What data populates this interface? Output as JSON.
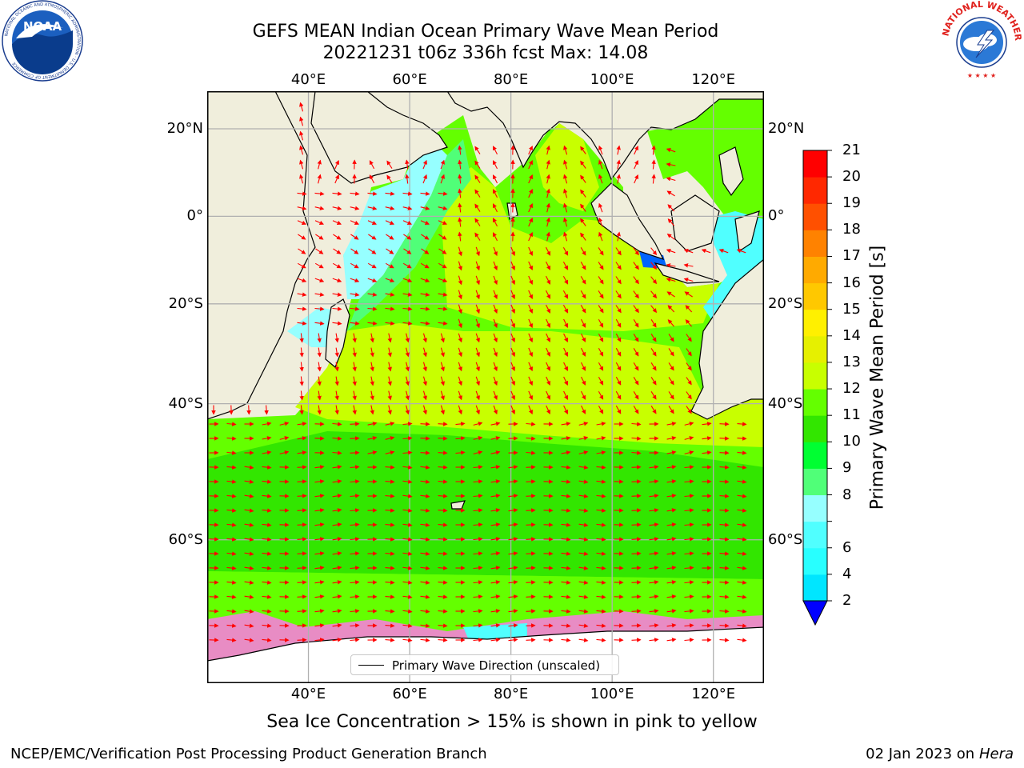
{
  "header": {
    "title_line1": "GEFS MEAN Indian Ocean Primary Wave Mean Period",
    "title_line2": "20221231 t06z 336h fcst   Max: 14.08"
  },
  "logos": {
    "noaa": {
      "text": "NOAA",
      "ring_text": "NATIONAL OCEANIC AND ATMOSPHERIC ADMINISTRATION · U.S. DEPARTMENT OF COMMERCE"
    },
    "nws": {
      "ring_text": "NATIONAL WEATHER SERVICE"
    }
  },
  "map": {
    "lon_range": [
      20,
      130
    ],
    "lat_range": [
      -73,
      28
    ],
    "lon_ticks": [
      {
        "value": 40,
        "label": "40°E"
      },
      {
        "value": 60,
        "label": "60°E"
      },
      {
        "value": 80,
        "label": "80°E"
      },
      {
        "value": 100,
        "label": "100°E"
      },
      {
        "value": 120,
        "label": "120°E"
      }
    ],
    "lat_ticks": [
      {
        "value": 20,
        "label": "20°N"
      },
      {
        "value": 0,
        "label": "0°"
      },
      {
        "value": -20,
        "label": "20°S"
      },
      {
        "value": -40,
        "label": "40°S"
      },
      {
        "value": -60,
        "label": "60°S"
      }
    ],
    "gridlines": true,
    "land_color": "#f0eedc",
    "arrow_color": "#ff0000",
    "legend_label": "Primary Wave Direction (unscaled)",
    "ice_note": "Sea Ice Concentration > 15% is shown in pink to yellow"
  },
  "colorbar": {
    "title": "Primary Wave Mean Period [s]",
    "levels": [
      {
        "value": 2,
        "label": "2",
        "color": "#0064ff"
      },
      {
        "value": 4,
        "label": "4",
        "color": "#00e6ff"
      },
      {
        "value": 6,
        "label": "6",
        "color": "#28ffff"
      },
      {
        "value": 7,
        "label": "",
        "color": "#50ffff"
      },
      {
        "value": 8,
        "label": "8",
        "color": "#96ffff"
      },
      {
        "value": 9,
        "label": "9",
        "color": "#50ff78"
      },
      {
        "value": 10,
        "label": "10",
        "color": "#00ff32"
      },
      {
        "value": 11,
        "label": "11",
        "color": "#32e600"
      },
      {
        "value": 12,
        "label": "12",
        "color": "#64ff00"
      },
      {
        "value": 13,
        "label": "13",
        "color": "#c8ff00"
      },
      {
        "value": 14,
        "label": "14",
        "color": "#e6f000"
      },
      {
        "value": 15,
        "label": "15",
        "color": "#fff000"
      },
      {
        "value": 16,
        "label": "16",
        "color": "#ffc800"
      },
      {
        "value": 17,
        "label": "17",
        "color": "#ffaa00"
      },
      {
        "value": 18,
        "label": "18",
        "color": "#ff8200"
      },
      {
        "value": 19,
        "label": "19",
        "color": "#ff5000"
      },
      {
        "value": 20,
        "label": "20",
        "color": "#ff2800"
      },
      {
        "value": 21,
        "label": "21",
        "color": "#ff0000"
      }
    ],
    "under_color": "#0000ff"
  },
  "footer": {
    "left": "NCEP/EMC/Verification Post Processing Product Generation Branch",
    "date": "02 Jan 2023 on ",
    "machine": "Hera"
  }
}
